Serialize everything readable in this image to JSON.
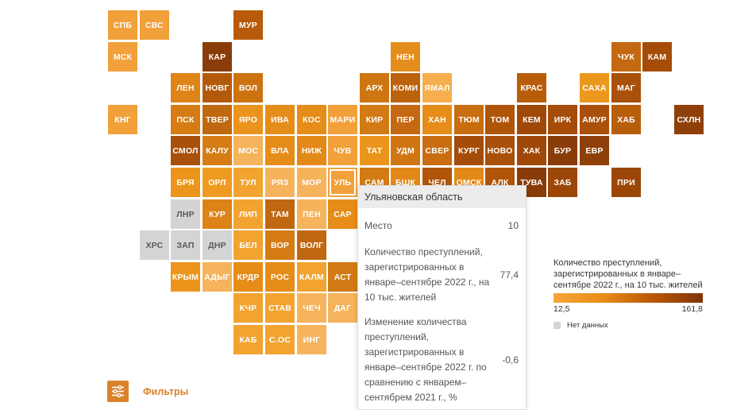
{
  "colors": {
    "scale_min": "#f7a63a",
    "scale_mid": "#e88c16",
    "scale_high": "#b95707",
    "scale_max": "#7f3508",
    "no_data": "#d4d4d4",
    "accent": "#d9822b"
  },
  "regions": [
    {
      "code": "СПБ",
      "col": 0,
      "row": 0,
      "color": "#f2a03a"
    },
    {
      "code": "СВС",
      "col": 1,
      "row": 0,
      "color": "#f2a03a"
    },
    {
      "code": "МУР",
      "col": 4,
      "row": 0,
      "color": "#b85a0a"
    },
    {
      "code": "МСК",
      "col": 0,
      "row": 1,
      "color": "#f2a03a"
    },
    {
      "code": "КАР",
      "col": 3,
      "row": 1,
      "color": "#8a3c08"
    },
    {
      "code": "НЕН",
      "col": 9,
      "row": 1,
      "color": "#e58d1c"
    },
    {
      "code": "ЧУК",
      "col": 16,
      "row": 1,
      "color": "#c46812"
    },
    {
      "code": "КАМ",
      "col": 17,
      "row": 1,
      "color": "#a54c08"
    },
    {
      "code": "ЛЕН",
      "col": 2,
      "row": 2,
      "color": "#de8418"
    },
    {
      "code": "НОВГ",
      "col": 3,
      "row": 2,
      "color": "#b35a0a"
    },
    {
      "code": "ВОЛ",
      "col": 4,
      "row": 2,
      "color": "#cc7310"
    },
    {
      "code": "АРХ",
      "col": 8,
      "row": 2,
      "color": "#cf7612"
    },
    {
      "code": "КОМИ",
      "col": 9,
      "row": 2,
      "color": "#bd620c"
    },
    {
      "code": "ЯМАЛ",
      "col": 10,
      "row": 2,
      "color": "#f6ae4e"
    },
    {
      "code": "КРАС",
      "col": 13,
      "row": 2,
      "color": "#b85e0b"
    },
    {
      "code": "САХА",
      "col": 15,
      "row": 2,
      "color": "#eb981e"
    },
    {
      "code": "МАГ",
      "col": 16,
      "row": 2,
      "color": "#a9500a"
    },
    {
      "code": "КНГ",
      "col": 0,
      "row": 3,
      "color": "#f2a03a"
    },
    {
      "code": "ПСК",
      "col": 2,
      "row": 3,
      "color": "#d57c14"
    },
    {
      "code": "ТВЕР",
      "col": 3,
      "row": 3,
      "color": "#c06810"
    },
    {
      "code": "ЯРО",
      "col": 4,
      "row": 3,
      "color": "#ea931d"
    },
    {
      "code": "ИВА",
      "col": 5,
      "row": 3,
      "color": "#e68c19"
    },
    {
      "code": "КОС",
      "col": 6,
      "row": 3,
      "color": "#e68c19"
    },
    {
      "code": "МАРИ",
      "col": 7,
      "row": 3,
      "color": "#f2a03a"
    },
    {
      "code": "КИР",
      "col": 8,
      "row": 3,
      "color": "#d27a14"
    },
    {
      "code": "ПЕР",
      "col": 9,
      "row": 3,
      "color": "#c46812"
    },
    {
      "code": "ХАН",
      "col": 10,
      "row": 3,
      "color": "#e68c19"
    },
    {
      "code": "ТЮМ",
      "col": 11,
      "row": 3,
      "color": "#c86d10"
    },
    {
      "code": "ТОМ",
      "col": 12,
      "row": 3,
      "color": "#b05408"
    },
    {
      "code": "КЕМ",
      "col": 13,
      "row": 3,
      "color": "#a04808"
    },
    {
      "code": "ИРК",
      "col": 14,
      "row": 3,
      "color": "#a54c08"
    },
    {
      "code": "АМУР",
      "col": 15,
      "row": 3,
      "color": "#a9500a"
    },
    {
      "code": "ХАБ",
      "col": 16,
      "row": 3,
      "color": "#b85e0b"
    },
    {
      "code": "СХЛН",
      "col": 18,
      "row": 3,
      "color": "#8f4008"
    },
    {
      "code": "СМОЛ",
      "col": 2,
      "row": 4,
      "color": "#a9500a"
    },
    {
      "code": "КАЛУ",
      "col": 3,
      "row": 4,
      "color": "#d57c14"
    },
    {
      "code": "МОС",
      "col": 4,
      "row": 4,
      "color": "#f5b35c"
    },
    {
      "code": "ВЛА",
      "col": 5,
      "row": 4,
      "color": "#e68c19"
    },
    {
      "code": "НИЖ",
      "col": 6,
      "row": 4,
      "color": "#e38918"
    },
    {
      "code": "ЧУВ",
      "col": 7,
      "row": 4,
      "color": "#f2a03a"
    },
    {
      "code": "ТАТ",
      "col": 8,
      "row": 4,
      "color": "#eb951d"
    },
    {
      "code": "УДМ",
      "col": 9,
      "row": 4,
      "color": "#cf7612"
    },
    {
      "code": "СВЕР",
      "col": 10,
      "row": 4,
      "color": "#c86d10"
    },
    {
      "code": "КУРГ",
      "col": 11,
      "row": 4,
      "color": "#a54c08"
    },
    {
      "code": "НОВО",
      "col": 12,
      "row": 4,
      "color": "#a9500a"
    },
    {
      "code": "ХАК",
      "col": 13,
      "row": 4,
      "color": "#a04808"
    },
    {
      "code": "БУР",
      "col": 14,
      "row": 4,
      "color": "#8a3c08"
    },
    {
      "code": "ЕВР",
      "col": 15,
      "row": 4,
      "color": "#8f4008"
    },
    {
      "code": "БРЯ",
      "col": 2,
      "row": 5,
      "color": "#eb951d"
    },
    {
      "code": "ОРЛ",
      "col": 3,
      "row": 5,
      "color": "#ef9b22"
    },
    {
      "code": "ТУЛ",
      "col": 4,
      "row": 5,
      "color": "#f2a330"
    },
    {
      "code": "РЯЗ",
      "col": 5,
      "row": 5,
      "color": "#f5b35c"
    },
    {
      "code": "МОР",
      "col": 6,
      "row": 5,
      "color": "#f5b35c"
    },
    {
      "code": "УЛЬ",
      "col": 7,
      "row": 5,
      "color": "#f2a03a",
      "selected": true
    },
    {
      "code": "САМ",
      "col": 8,
      "row": 5,
      "color": "#d27a14"
    },
    {
      "code": "БШК",
      "col": 9,
      "row": 5,
      "color": "#e38918"
    },
    {
      "code": "ЧЕЛ",
      "col": 10,
      "row": 5,
      "color": "#b05408"
    },
    {
      "code": "ОМСК",
      "col": 11,
      "row": 5,
      "color": "#e38918"
    },
    {
      "code": "АЛК",
      "col": 12,
      "row": 5,
      "color": "#b05408"
    },
    {
      "code": "ТУВА",
      "col": 13,
      "row": 5,
      "color": "#8a3c08"
    },
    {
      "code": "ЗАБ",
      "col": 14,
      "row": 5,
      "color": "#9c4708"
    },
    {
      "code": "ПРИ",
      "col": 16,
      "row": 5,
      "color": "#9c4708"
    },
    {
      "code": "ЛНР",
      "col": 2,
      "row": 6,
      "color": "#d4d4d4",
      "nodata": true
    },
    {
      "code": "КУР",
      "col": 3,
      "row": 6,
      "color": "#dc8217"
    },
    {
      "code": "ЛИП",
      "col": 4,
      "row": 6,
      "color": "#f2a330"
    },
    {
      "code": "ТАМ",
      "col": 5,
      "row": 6,
      "color": "#c06810"
    },
    {
      "code": "ПЕН",
      "col": 6,
      "row": 6,
      "color": "#f5b35c"
    },
    {
      "code": "САР",
      "col": 7,
      "row": 6,
      "color": "#e68c19"
    },
    {
      "code": "ХРС",
      "col": 1,
      "row": 7,
      "color": "#d4d4d4",
      "nodata": true
    },
    {
      "code": "ЗАП",
      "col": 2,
      "row": 7,
      "color": "#d4d4d4",
      "nodata": true
    },
    {
      "code": "ДНР",
      "col": 3,
      "row": 7,
      "color": "#d4d4d4",
      "nodata": true
    },
    {
      "code": "БЕЛ",
      "col": 4,
      "row": 7,
      "color": "#f2a330"
    },
    {
      "code": "ВОР",
      "col": 5,
      "row": 7,
      "color": "#d57c14"
    },
    {
      "code": "ВОЛГ",
      "col": 6,
      "row": 7,
      "color": "#c06810"
    },
    {
      "code": "КРЫМ",
      "col": 2,
      "row": 8,
      "color": "#eb951d"
    },
    {
      "code": "АДЫГ",
      "col": 3,
      "row": 8,
      "color": "#f5b35c"
    },
    {
      "code": "КРДР",
      "col": 4,
      "row": 8,
      "color": "#e68c19"
    },
    {
      "code": "РОС",
      "col": 5,
      "row": 8,
      "color": "#e68c19"
    },
    {
      "code": "КАЛМ",
      "col": 6,
      "row": 8,
      "color": "#f2a330"
    },
    {
      "code": "АСТ",
      "col": 7,
      "row": 8,
      "color": "#d27a14"
    },
    {
      "code": "КЧР",
      "col": 4,
      "row": 9,
      "color": "#f2a330"
    },
    {
      "code": "СТАВ",
      "col": 5,
      "row": 9,
      "color": "#f2a330"
    },
    {
      "code": "ЧЕЧ",
      "col": 6,
      "row": 9,
      "color": "#f5b35c"
    },
    {
      "code": "ДАГ",
      "col": 7,
      "row": 9,
      "color": "#f5b35c"
    },
    {
      "code": "КАБ",
      "col": 4,
      "row": 10,
      "color": "#f2a330"
    },
    {
      "code": "С.ОС",
      "col": 5,
      "row": 10,
      "color": "#f2a330"
    },
    {
      "code": "ИНГ",
      "col": 6,
      "row": 10,
      "color": "#f5b35c"
    }
  ],
  "tooltip": {
    "title": "Ульяновская область",
    "rows": [
      {
        "label": "Место",
        "value": "10"
      },
      {
        "label": "Количество преступлений, зарегистрированных в январе–сентябре 2022 г., на 10 тыс. жителей",
        "value": "77,4"
      },
      {
        "label": "Изменение количества преступлений, зарегистрированных в январе–сентябре 2022 г. по сравнению с январем–сентябрем 2021 г., %",
        "value": "-0,6"
      }
    ]
  },
  "legend": {
    "title": "Количество преступлений, зарегистрированных в январе–сентябре 2022 г., на 10 тыс. жителей",
    "min": "12,5",
    "max": "161,8",
    "no_data_label": "Нет данных"
  },
  "filters": {
    "label": "Фильтры",
    "icon": "sliders-icon"
  }
}
